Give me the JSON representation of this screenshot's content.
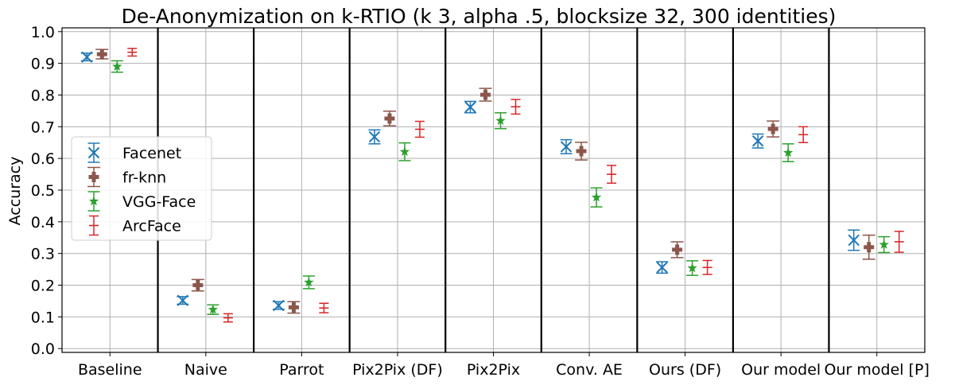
{
  "chart_data": {
    "type": "errorbar",
    "title": "De-Anonymization on k-RTIO (k 3, alpha .5, blocksize 32, 300 identities)",
    "xlabel": "",
    "ylabel": "Accuracy",
    "ylim": [
      0.0,
      1.0
    ],
    "yticks": [
      0.0,
      0.1,
      0.2,
      0.3,
      0.4,
      0.5,
      0.6,
      0.7,
      0.8,
      0.9,
      1.0
    ],
    "ytick_labels": [
      "0.0",
      "0.1",
      "0.2",
      "0.3",
      "0.4",
      "0.5",
      "0.6",
      "0.7",
      "0.8",
      "0.9",
      "1.0"
    ],
    "grid": true,
    "legend_position": "center-left",
    "categories": [
      "Baseline",
      "Naive",
      "Parrot",
      "Pix2Pix (DF)",
      "Pix2Pix",
      "Conv. AE",
      "Ours (DF)",
      "Our model",
      "Our model [P]"
    ],
    "series": [
      {
        "name": "Facenet",
        "color": "#1f77b4",
        "marker": "x",
        "values": [
          0.92,
          0.152,
          0.136,
          0.668,
          0.762,
          0.637,
          0.256,
          0.655,
          0.342
        ],
        "errors": [
          0.012,
          0.012,
          0.012,
          0.022,
          0.018,
          0.022,
          0.018,
          0.022,
          0.032
        ]
      },
      {
        "name": "fr-knn",
        "color": "#8c564b",
        "marker": "plus",
        "values": [
          0.929,
          0.2,
          0.13,
          0.726,
          0.801,
          0.623,
          0.312,
          0.693,
          0.32
        ],
        "errors": [
          0.015,
          0.018,
          0.018,
          0.023,
          0.02,
          0.028,
          0.025,
          0.025,
          0.038
        ]
      },
      {
        "name": "VGG-Face",
        "color": "#2ca02c",
        "marker": "star",
        "values": [
          0.89,
          0.123,
          0.209,
          0.621,
          0.719,
          0.477,
          0.254,
          0.618,
          0.328
        ],
        "errors": [
          0.018,
          0.015,
          0.02,
          0.028,
          0.025,
          0.03,
          0.023,
          0.028,
          0.025
        ]
      },
      {
        "name": "ArcFace",
        "color": "#d62728",
        "marker": "pipe",
        "values": [
          0.935,
          0.097,
          0.128,
          0.692,
          0.763,
          0.55,
          0.256,
          0.675,
          0.337
        ],
        "errors": [
          0.012,
          0.013,
          0.015,
          0.025,
          0.023,
          0.028,
          0.022,
          0.025,
          0.033
        ]
      }
    ]
  }
}
